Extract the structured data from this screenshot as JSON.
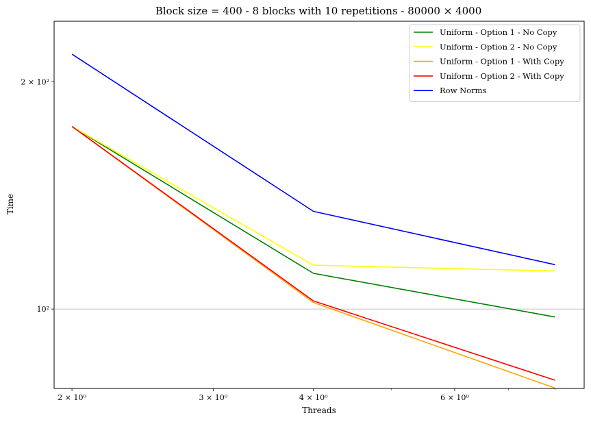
{
  "chart_data": {
    "type": "line",
    "title": "Block size = 400 - 8 blocks with 10 repetitions - 80000 × 4000",
    "xlabel": "Threads",
    "ylabel": "Time",
    "xscale": "log",
    "yscale": "log",
    "xlim": [
      1.9,
      8.7
    ],
    "ylim": [
      78.5,
      240.5
    ],
    "x": [
      2,
      4,
      8
    ],
    "x_ticks": [
      {
        "value": 2,
        "label": "2 × 10⁰"
      },
      {
        "value": 3,
        "label": "3 × 10⁰"
      },
      {
        "value": 4,
        "label": "4 × 10⁰"
      },
      {
        "value": 6,
        "label": "6 × 10⁰"
      }
    ],
    "x_minor_ticks": [
      5,
      7,
      8
    ],
    "y_ticks": [
      {
        "value": 100,
        "label": "10²",
        "grid": true
      },
      {
        "value": 200,
        "label": "2 × 10²",
        "grid": false
      }
    ],
    "legend_position": "upper right",
    "series": [
      {
        "name": "Uniform - Option 1 - No Copy",
        "color": "#008000",
        "values": [
          174.5,
          111.5,
          97.6
        ]
      },
      {
        "name": "Uniform - Option 2 - No Copy",
        "color": "#ffff00",
        "values": [
          174.5,
          114.3,
          112.3
        ]
      },
      {
        "name": "Uniform - Option 1 - With Copy",
        "color": "#ffa500",
        "values": [
          174.5,
          102.0,
          78.6
        ]
      },
      {
        "name": "Uniform - Option 2 - With Copy",
        "color": "#ff0000",
        "values": [
          174.5,
          102.5,
          80.5
        ]
      },
      {
        "name": "Row Norms",
        "color": "#0000ff",
        "values": [
          217.5,
          134.7,
          114.5
        ]
      }
    ]
  }
}
